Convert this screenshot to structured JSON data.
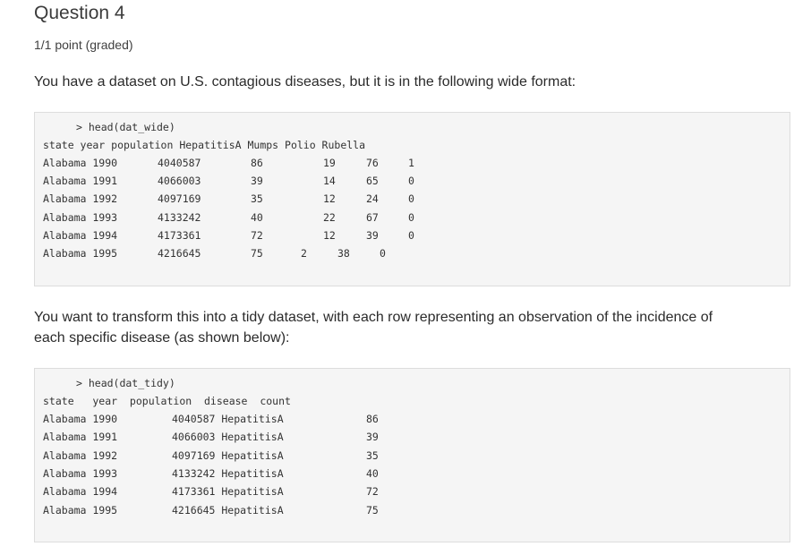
{
  "question": {
    "title": "Question 4",
    "points": "1/1 point (graded)",
    "intro": "You have a dataset on U.S. contagious diseases, but it is in the following wide format:",
    "transform_line1": "You want to transform this into a tidy dataset, with each row representing an observation of the incidence of",
    "transform_line2": "each specific disease (as shown below):"
  },
  "wide_block": {
    "command": "> head(dat_wide)",
    "header": "state year population HepatitisA Mumps Polio Rubella",
    "rows": [
      [
        "Alabama 1990",
        "4040587",
        "86",
        "19",
        "76",
        "1"
      ],
      [
        "Alabama 1991",
        "4066003",
        "39",
        "14",
        "65",
        "0"
      ],
      [
        "Alabama 1992",
        "4097169",
        "35",
        "12",
        "24",
        "0"
      ],
      [
        "Alabama 1993",
        "4133242",
        "40",
        "22",
        "67",
        "0"
      ],
      [
        "Alabama 1994",
        "4173361",
        "72",
        "12",
        "39",
        "0"
      ],
      [
        "Alabama 1995",
        "4216645",
        "75",
        "2",
        "38",
        "0"
      ]
    ]
  },
  "tidy_block": {
    "command": "> head(dat_tidy)",
    "header": "state   year  population  disease  count",
    "rows": [
      [
        "Alabama 1990",
        "4040587 HepatitisA",
        "86"
      ],
      [
        "Alabama 1991",
        "4066003 HepatitisA",
        "39"
      ],
      [
        "Alabama 1992",
        "4097169 HepatitisA",
        "35"
      ],
      [
        "Alabama 1993",
        "4133242 HepatitisA",
        "40"
      ],
      [
        "Alabama 1994",
        "4173361 HepatitisA",
        "72"
      ],
      [
        "Alabama 1995",
        "4216645 HepatitisA",
        "75"
      ]
    ]
  }
}
